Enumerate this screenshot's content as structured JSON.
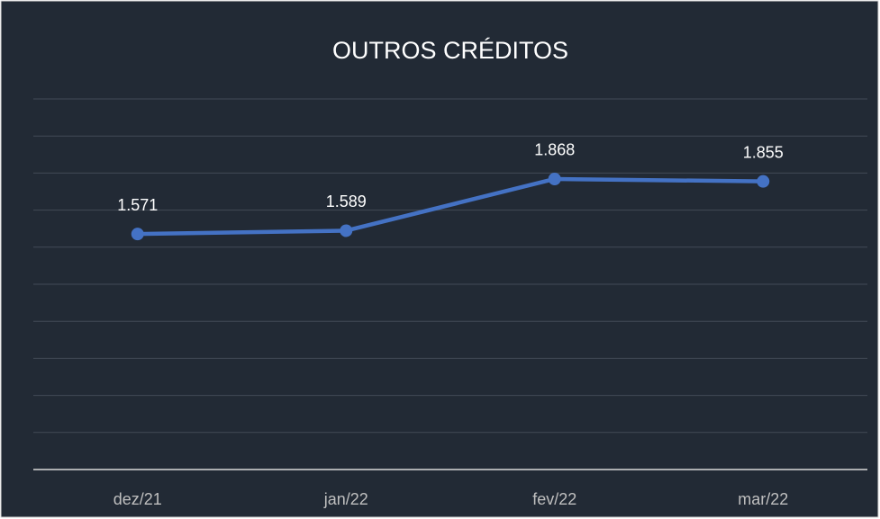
{
  "chart_data": {
    "type": "line",
    "title": "OUTROS CRÉDITOS",
    "categories": [
      "dez/21",
      "jan/22",
      "fev/22",
      "mar/22"
    ],
    "values": [
      1571,
      1589,
      1868,
      1855
    ],
    "value_labels": [
      "1.571",
      "1.589",
      "1.868",
      "1.855"
    ],
    "color": "#4472c4",
    "ylim": [
      300,
      2300
    ],
    "yticks": [
      300,
      500,
      700,
      900,
      1100,
      1300,
      1500,
      1700,
      1900,
      2100,
      2300
    ],
    "grid": true
  }
}
